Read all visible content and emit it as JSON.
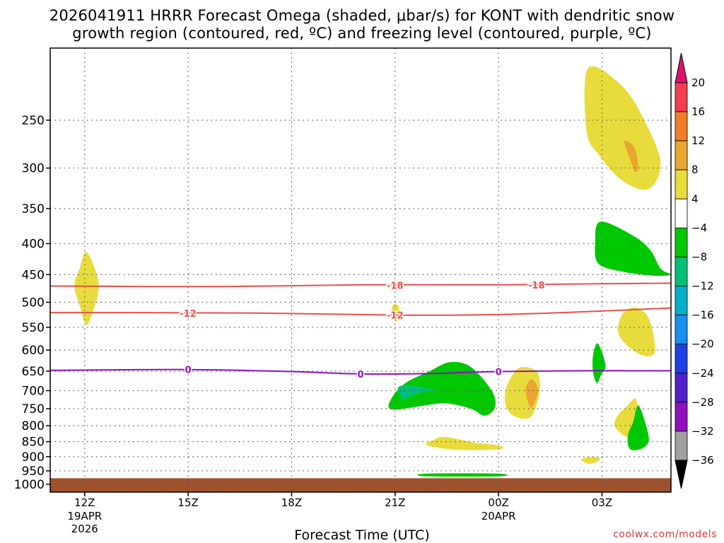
{
  "title": {
    "line1": "2026041911 HRRR Forecast Omega (shaded, μbar/s) for KONT with dendritic snow",
    "line2": "growth region (contoured, red, ºC) and freezing level (contoured, purple, ºC)"
  },
  "credit": "coolwx.com/models",
  "chart_data": {
    "type": "contour",
    "xlabel": "Forecast Time (UTC)",
    "ylabel": "",
    "x_range_hours": [
      -1,
      17
    ],
    "y_log_pressure_range_hpa": [
      190,
      1030
    ],
    "x_ticks": [
      {
        "hour": 0,
        "label": "12Z",
        "sub1": "19APR",
        "sub2": "2026"
      },
      {
        "hour": 3,
        "label": "15Z",
        "sub1": "",
        "sub2": ""
      },
      {
        "hour": 6,
        "label": "18Z",
        "sub1": "",
        "sub2": ""
      },
      {
        "hour": 9,
        "label": "21Z",
        "sub1": "",
        "sub2": ""
      },
      {
        "hour": 12,
        "label": "00Z",
        "sub1": "20APR",
        "sub2": ""
      },
      {
        "hour": 15,
        "label": "03Z",
        "sub1": "",
        "sub2": ""
      }
    ],
    "y_ticks": [
      250,
      300,
      350,
      400,
      450,
      500,
      550,
      600,
      650,
      700,
      750,
      800,
      850,
      900,
      950,
      1000
    ],
    "grid": true,
    "colorbar": {
      "labels": [
        "20",
        "16",
        "12",
        "8",
        "4",
        "-4",
        "-8",
        "-12",
        "-16",
        "-20",
        "-24",
        "-28",
        "-32",
        "-36"
      ],
      "colors": [
        "#f04050",
        "#ef7d2a",
        "#e8a830",
        "#e8dc3c",
        "#ffffff",
        "#00c800",
        "#00c078",
        "#00b0c8",
        "#1890f0",
        "#2040e0",
        "#5020c8",
        "#9010c0",
        "#a0a0a0"
      ],
      "top_arrow_color": "#e0106a",
      "bottom_arrow_color": "#000000"
    },
    "contours": [
      {
        "name": "-18",
        "color": "#e8504a",
        "points": [
          [
            -1,
            470
          ],
          [
            4,
            471
          ],
          [
            8,
            468
          ],
          [
            12,
            468
          ],
          [
            15,
            466
          ],
          [
            17,
            465
          ]
        ],
        "label_at": [
          [
            9,
            469
          ],
          [
            13.1,
            468
          ]
        ]
      },
      {
        "name": "-12",
        "color": "#e8504a",
        "points": [
          [
            -1,
            520
          ],
          [
            5,
            521
          ],
          [
            9,
            525
          ],
          [
            12,
            524
          ],
          [
            15,
            517
          ],
          [
            17,
            511
          ]
        ],
        "label_at": [
          [
            3,
            521
          ],
          [
            9,
            525
          ]
        ]
      },
      {
        "name": "0",
        "color": "#9010c0",
        "points": [
          [
            -1,
            648
          ],
          [
            3,
            646
          ],
          [
            6,
            651
          ],
          [
            8,
            657
          ],
          [
            10,
            656
          ],
          [
            12,
            651
          ],
          [
            14.5,
            649
          ],
          [
            17,
            649
          ]
        ],
        "label_at": [
          [
            3,
            646
          ],
          [
            8,
            657
          ],
          [
            12,
            651
          ]
        ]
      }
    ],
    "shaded_regions": [
      {
        "level": "4-8",
        "color": "#e8dc3c",
        "outline": [
          [
            0.05,
            413
          ],
          [
            0.35,
            450
          ],
          [
            0.4,
            480
          ],
          [
            0.25,
            515
          ],
          [
            0.05,
            545
          ],
          [
            -0.15,
            505
          ],
          [
            -0.3,
            470
          ],
          [
            -0.15,
            440
          ]
        ]
      },
      {
        "level": "4-8",
        "color": "#e8dc3c",
        "outline": [
          [
            14.6,
            205
          ],
          [
            15.6,
            220
          ],
          [
            16.3,
            255
          ],
          [
            16.7,
            295
          ],
          [
            16.35,
            325
          ],
          [
            15.6,
            315
          ],
          [
            14.9,
            285
          ],
          [
            14.55,
            260
          ]
        ]
      },
      {
        "level": "8-12",
        "color": "#e8a830",
        "outline": [
          [
            15.65,
            270
          ],
          [
            15.95,
            278
          ],
          [
            16.05,
            300
          ],
          [
            15.95,
            304
          ],
          [
            15.85,
            294
          ],
          [
            15.75,
            284
          ]
        ]
      },
      {
        "level": "-4 to -8",
        "color": "#00c800",
        "outline": [
          [
            14.95,
            368
          ],
          [
            15.9,
            388
          ],
          [
            16.4,
            410
          ],
          [
            16.7,
            440
          ],
          [
            17,
            450
          ],
          [
            16.5,
            452
          ],
          [
            15.6,
            445
          ],
          [
            14.9,
            432
          ],
          [
            14.8,
            400
          ]
        ]
      },
      {
        "level": "4-8",
        "color": "#e8dc3c",
        "outline": [
          [
            15.9,
            510
          ],
          [
            16.3,
            525
          ],
          [
            16.5,
            570
          ],
          [
            16.5,
            610
          ],
          [
            16.05,
            608
          ],
          [
            15.5,
            568
          ],
          [
            15.55,
            528
          ]
        ]
      },
      {
        "level": "4-8",
        "color": "#e8dc3c",
        "outline": [
          [
            9,
            503
          ],
          [
            9.12,
            512
          ],
          [
            9.05,
            538
          ],
          [
            8.93,
            525
          ],
          [
            8.9,
            512
          ]
        ]
      },
      {
        "level": "-4 to -8",
        "color": "#00c800",
        "outline": [
          [
            10.6,
            628
          ],
          [
            11.2,
            640
          ],
          [
            11.8,
            700
          ],
          [
            11.9,
            745
          ],
          [
            11.6,
            770
          ],
          [
            11.2,
            750
          ],
          [
            10.5,
            735
          ],
          [
            9.9,
            740
          ],
          [
            8.9,
            752
          ],
          [
            8.9,
            720
          ],
          [
            9.3,
            680
          ],
          [
            10,
            650
          ]
        ]
      },
      {
        "level": "-8 to -12",
        "color": "#00c078",
        "outline": [
          [
            9.1,
            690
          ],
          [
            9.5,
            686
          ],
          [
            9.85,
            692
          ],
          [
            10.2,
            698
          ],
          [
            9.8,
            704
          ],
          [
            9.4,
            718
          ],
          [
            9.2,
            724
          ],
          [
            9.15,
            712
          ]
        ]
      },
      {
        "level": "4-8",
        "color": "#e8dc3c",
        "outline": [
          [
            12.65,
            640
          ],
          [
            13.1,
            650
          ],
          [
            13.2,
            690
          ],
          [
            13.1,
            740
          ],
          [
            12.9,
            776
          ],
          [
            12.5,
            774
          ],
          [
            12.22,
            745
          ],
          [
            12.2,
            700
          ],
          [
            12.4,
            660
          ]
        ]
      },
      {
        "level": "8-12",
        "color": "#e8a830",
        "outline": [
          [
            12.95,
            670
          ],
          [
            13.15,
            700
          ],
          [
            12.95,
            748
          ],
          [
            12.78,
            700
          ]
        ]
      },
      {
        "level": "-4 to -8",
        "color": "#00c800",
        "outline": [
          [
            14.88,
            585
          ],
          [
            15.1,
            635
          ],
          [
            14.97,
            660
          ],
          [
            14.85,
            680
          ],
          [
            14.74,
            652
          ],
          [
            14.74,
            612
          ]
        ]
      },
      {
        "level": "4-8",
        "color": "#e8dc3c",
        "outline": [
          [
            15.98,
            722
          ],
          [
            16.0,
            780
          ],
          [
            15.77,
            835
          ],
          [
            15.38,
            803
          ],
          [
            15.45,
            770
          ],
          [
            15.7,
            745
          ]
        ]
      },
      {
        "level": "-4 to -8",
        "color": "#00c800",
        "outline": [
          [
            16.05,
            740
          ],
          [
            16.28,
            800
          ],
          [
            16.35,
            850
          ],
          [
            16.1,
            875
          ],
          [
            15.8,
            873
          ],
          [
            15.75,
            830
          ],
          [
            15.9,
            790
          ]
        ]
      },
      {
        "level": "4-8",
        "color": "#e8dc3c",
        "outline": [
          [
            10.45,
            835
          ],
          [
            11.3,
            853
          ],
          [
            12.0,
            862
          ],
          [
            12.03,
            875
          ],
          [
            10.8,
            877
          ],
          [
            9.92,
            862
          ],
          [
            10.1,
            846
          ]
        ]
      },
      {
        "level": "4-8",
        "color": "#e8dc3c",
        "outline": [
          [
            14.7,
            900
          ],
          [
            14.95,
            908
          ],
          [
            14.65,
            925
          ],
          [
            14.4,
            910
          ]
        ]
      },
      {
        "level": "-4 to -8",
        "color": "#00c800",
        "outline": [
          [
            9.9,
            960
          ],
          [
            12.0,
            960
          ],
          [
            12.0,
            970
          ],
          [
            9.9,
            970
          ]
        ]
      }
    ],
    "ground": {
      "color": "#a0522d",
      "from_hpa": 977
    }
  }
}
